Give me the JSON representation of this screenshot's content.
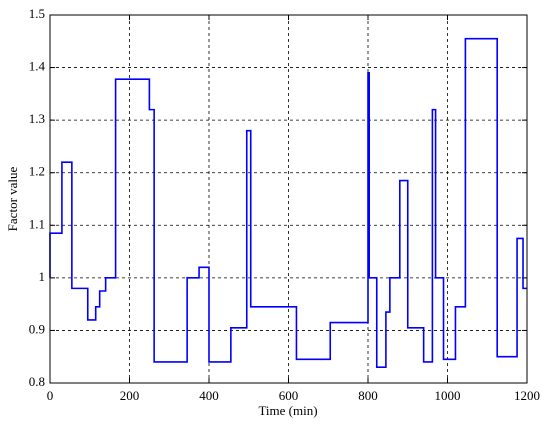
{
  "chart_data": {
    "type": "line",
    "xlabel": "Time (min)",
    "ylabel": "Factor value",
    "color": "#0000ff",
    "grid": true,
    "xlim": [
      0,
      1200
    ],
    "xticks": [
      0,
      200,
      400,
      600,
      800,
      1000,
      1200
    ],
    "ylim": [
      0.8,
      1.5
    ],
    "yticks": [
      0.8,
      0.9,
      1,
      1.1,
      1.2,
      1.3,
      1.4,
      1.5
    ],
    "x": [
      0,
      0,
      30,
      30,
      55,
      55,
      95,
      95,
      115,
      115,
      125,
      125,
      140,
      140,
      165,
      165,
      250,
      250,
      262,
      262,
      345,
      345,
      375,
      375,
      400,
      400,
      455,
      455,
      495,
      495,
      505,
      505,
      620,
      620,
      705,
      705,
      800,
      800,
      803,
      803,
      822,
      822,
      845,
      845,
      855,
      855,
      880,
      880,
      900,
      900,
      940,
      940,
      962,
      962,
      970,
      970,
      990,
      990,
      1020,
      1020,
      1045,
      1045,
      1125,
      1125,
      1175,
      1175,
      1190,
      1190,
      1200
    ],
    "values": [
      1.0,
      1.085,
      1.085,
      1.22,
      1.22,
      0.98,
      0.98,
      0.92,
      0.92,
      0.945,
      0.945,
      0.975,
      0.975,
      1.0,
      1.0,
      1.378,
      1.378,
      1.32,
      1.32,
      0.84,
      0.84,
      1.0,
      1.0,
      1.02,
      1.02,
      0.84,
      0.84,
      0.905,
      0.905,
      1.28,
      1.28,
      0.945,
      0.945,
      0.845,
      0.845,
      0.915,
      0.915,
      1.39,
      1.39,
      1.0,
      1.0,
      0.83,
      0.83,
      0.935,
      0.935,
      1.0,
      1.0,
      1.185,
      1.185,
      0.905,
      0.905,
      0.84,
      0.84,
      1.32,
      1.32,
      1.0,
      1.0,
      0.845,
      0.845,
      0.945,
      0.945,
      1.455,
      1.455,
      0.85,
      0.85,
      1.075,
      1.075,
      0.98,
      0.98
    ]
  }
}
